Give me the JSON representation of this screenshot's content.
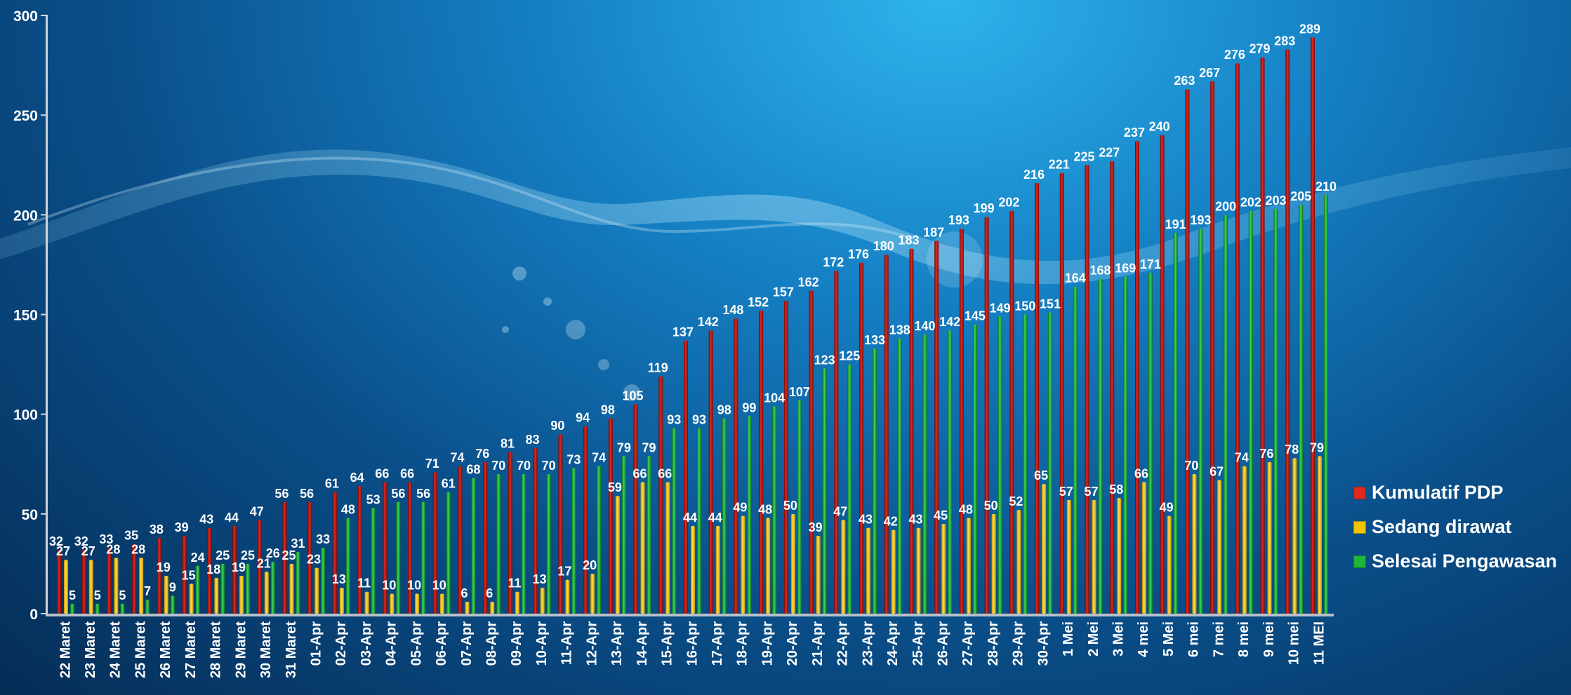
{
  "chart_data": {
    "type": "bar",
    "categories": [
      "22 Maret",
      "23 Maret",
      "24 Maret",
      "25 Maret",
      "26 Maret",
      "27 Maret",
      "28 Maret",
      "29 Maret",
      "30 Maret",
      "31 Maret",
      "01-Apr",
      "02-Apr",
      "03-Apr",
      "04-Apr",
      "05-Apr",
      "06-Apr",
      "07-Apr",
      "08-Apr",
      "09-Apr",
      "10-Apr",
      "11-Apr",
      "12-Apr",
      "13-Apr",
      "14-Apr",
      "15-Apr",
      "16-Apr",
      "17-Apr",
      "18-Apr",
      "19-Apr",
      "20-Apr",
      "21-Apr",
      "22-Apr",
      "23-Apr",
      "24-Apr",
      "25-Apr",
      "26-Apr",
      "27-Apr",
      "28-Apr",
      "29-Apr",
      "30-Apr",
      "1 Mei",
      "2 Mei",
      "3 Mei",
      "4 mei",
      "5 Mei",
      "6 mei",
      "7 mei",
      "8 mei",
      "9 mei",
      "10 mei",
      "11 MEI"
    ],
    "series": [
      {
        "name": "Kumulatif PDP",
        "color": "#c41a1a",
        "values": [
          32,
          32,
          33,
          35,
          38,
          39,
          43,
          44,
          47,
          56,
          56,
          61,
          64,
          66,
          66,
          71,
          74,
          76,
          81,
          83,
          90,
          94,
          98,
          105,
          119,
          137,
          142,
          148,
          152,
          157,
          162,
          172,
          176,
          180,
          183,
          187,
          193,
          199,
          202,
          216,
          221,
          225,
          227,
          237,
          240,
          263,
          267,
          276,
          279,
          283,
          289
        ]
      },
      {
        "name": "Sedang dirawat",
        "color": "#f2c400",
        "values": [
          27,
          27,
          28,
          28,
          19,
          15,
          18,
          19,
          21,
          25,
          23,
          13,
          11,
          10,
          10,
          10,
          6,
          6,
          11,
          13,
          17,
          20,
          59,
          66,
          66,
          44,
          44,
          49,
          48,
          50,
          39,
          47,
          43,
          42,
          43,
          45,
          48,
          50,
          52,
          65,
          57,
          57,
          58,
          66,
          49,
          70,
          67,
          74,
          76,
          78,
          79
        ]
      },
      {
        "name": "Selesai Pengawasan",
        "color": "#1fb43a",
        "values": [
          5,
          5,
          5,
          7,
          9,
          24,
          25,
          25,
          26,
          31,
          33,
          48,
          53,
          56,
          56,
          61,
          68,
          70,
          70,
          70,
          73,
          74,
          79,
          79,
          93,
          93,
          98,
          99,
          104,
          107,
          123,
          125,
          133,
          138,
          140,
          142,
          145,
          149,
          150,
          151,
          164,
          168,
          169,
          171,
          191,
          193,
          200,
          202,
          203,
          205,
          210
        ]
      }
    ],
    "ylim": [
      0,
      300
    ],
    "yticks": [
      0,
      50,
      100,
      150,
      200,
      250,
      300
    ],
    "grid": false,
    "legend_position": "right"
  }
}
